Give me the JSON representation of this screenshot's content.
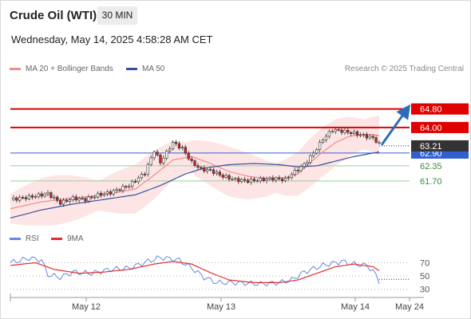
{
  "header": {
    "title": "Crude Oil (WTI)",
    "timeframe": "30 MIN",
    "datetime": "Wednesday, May 14, 2025 4:58:28 AM CET"
  },
  "legend": {
    "ma20": "MA 20 + Bollinger Bands",
    "ma50": "MA 50",
    "credit": "Research © 2025 Trading Central"
  },
  "rsi_legend": {
    "rsi": "RSI",
    "ma9": "9MA"
  },
  "colors": {
    "resistance": "#e00000",
    "support": "#9ecf9e",
    "pivot": "#2f5fd0",
    "ma20": "#f08c8c",
    "ma50": "#3a4f9a",
    "band": "#fde0e0",
    "up_candle": "#ffffff",
    "down_candle": "#cc2222",
    "rsi": "#6688dd",
    "rsi_ma": "#e03030",
    "arrow": "#2c6db5"
  },
  "chart_data": [
    {
      "type": "candlestick",
      "x_ticks": [
        "May 12",
        "May 13",
        "May 14",
        "May 24"
      ],
      "ylim": [
        59.7,
        66.3
      ],
      "last_price": "63.21",
      "levels": [
        {
          "label": "64.80",
          "value": 64.8,
          "kind": "resistance"
        },
        {
          "label": "64.00",
          "value": 64.0,
          "kind": "resistance"
        },
        {
          "label": "62.90",
          "value": 62.9,
          "kind": "pivot"
        },
        {
          "label": "62.35",
          "value": 62.35,
          "kind": "support"
        },
        {
          "label": "61.70",
          "value": 61.7,
          "kind": "support"
        }
      ],
      "price_path": [
        [
          0,
          60.9
        ],
        [
          6,
          61.0
        ],
        [
          12,
          61.15
        ],
        [
          16,
          60.75
        ],
        [
          20,
          60.95
        ],
        [
          24,
          60.9
        ],
        [
          28,
          61.1
        ],
        [
          32,
          61.2
        ],
        [
          38,
          61.5
        ],
        [
          43,
          62.05
        ],
        [
          46,
          63.0
        ],
        [
          48,
          62.5
        ],
        [
          52,
          63.35
        ],
        [
          55,
          63.1
        ],
        [
          58,
          62.5
        ],
        [
          61,
          62.2
        ],
        [
          64,
          62.15
        ],
        [
          68,
          61.9
        ],
        [
          72,
          61.75
        ],
        [
          76,
          61.7
        ],
        [
          80,
          61.75
        ],
        [
          84,
          61.8
        ],
        [
          88,
          61.75
        ],
        [
          90,
          62.0
        ],
        [
          92,
          62.2
        ],
        [
          94,
          62.4
        ],
        [
          97,
          62.9
        ],
        [
          100,
          63.5
        ],
        [
          103,
          63.9
        ],
        [
          106,
          63.85
        ],
        [
          110,
          63.75
        ],
        [
          113,
          63.65
        ],
        [
          116,
          63.55
        ],
        [
          118,
          63.3
        ]
      ],
      "ma20_path": [
        [
          0,
          60.5
        ],
        [
          10,
          60.8
        ],
        [
          20,
          60.95
        ],
        [
          30,
          61.1
        ],
        [
          40,
          61.35
        ],
        [
          46,
          61.95
        ],
        [
          52,
          62.6
        ],
        [
          58,
          62.75
        ],
        [
          64,
          62.45
        ],
        [
          70,
          62.1
        ],
        [
          76,
          61.9
        ],
        [
          82,
          61.8
        ],
        [
          88,
          61.85
        ],
        [
          92,
          62.0
        ],
        [
          96,
          62.5
        ],
        [
          100,
          62.95
        ],
        [
          104,
          63.35
        ],
        [
          108,
          63.6
        ],
        [
          112,
          63.7
        ],
        [
          116,
          63.7
        ],
        [
          118,
          63.65
        ]
      ],
      "ma50_path": [
        [
          0,
          60.1
        ],
        [
          10,
          60.45
        ],
        [
          20,
          60.7
        ],
        [
          30,
          60.9
        ],
        [
          40,
          61.1
        ],
        [
          48,
          61.5
        ],
        [
          56,
          62.0
        ],
        [
          62,
          62.25
        ],
        [
          70,
          62.4
        ],
        [
          78,
          62.45
        ],
        [
          86,
          62.4
        ],
        [
          92,
          62.3
        ],
        [
          98,
          62.35
        ],
        [
          104,
          62.55
        ],
        [
          110,
          62.75
        ],
        [
          116,
          62.9
        ],
        [
          118,
          62.95
        ]
      ],
      "band_half_width": 0.85,
      "forecast_target": 64.75
    },
    {
      "type": "line",
      "ylim": [
        20,
        85
      ],
      "y_ticks": [
        "70",
        "50",
        "30"
      ],
      "rsi": [
        [
          0,
          70
        ],
        [
          6,
          77
        ],
        [
          10,
          74
        ],
        [
          12,
          52
        ],
        [
          16,
          48
        ],
        [
          20,
          56
        ],
        [
          26,
          54
        ],
        [
          32,
          60
        ],
        [
          38,
          62
        ],
        [
          44,
          72
        ],
        [
          48,
          78
        ],
        [
          54,
          74
        ],
        [
          58,
          62
        ],
        [
          62,
          48
        ],
        [
          66,
          40
        ],
        [
          72,
          40
        ],
        [
          80,
          38
        ],
        [
          86,
          40
        ],
        [
          90,
          44
        ],
        [
          94,
          56
        ],
        [
          100,
          66
        ],
        [
          106,
          72
        ],
        [
          110,
          68
        ],
        [
          114,
          66
        ],
        [
          116,
          58
        ],
        [
          118,
          42
        ]
      ],
      "rsi_ma": [
        [
          0,
          66
        ],
        [
          8,
          70
        ],
        [
          14,
          60
        ],
        [
          22,
          54
        ],
        [
          30,
          56
        ],
        [
          38,
          60
        ],
        [
          46,
          68
        ],
        [
          52,
          72
        ],
        [
          58,
          68
        ],
        [
          64,
          55
        ],
        [
          70,
          44
        ],
        [
          78,
          40
        ],
        [
          86,
          40
        ],
        [
          92,
          44
        ],
        [
          98,
          54
        ],
        [
          104,
          64
        ],
        [
          110,
          68
        ],
        [
          116,
          64
        ],
        [
          118,
          58
        ]
      ]
    }
  ]
}
